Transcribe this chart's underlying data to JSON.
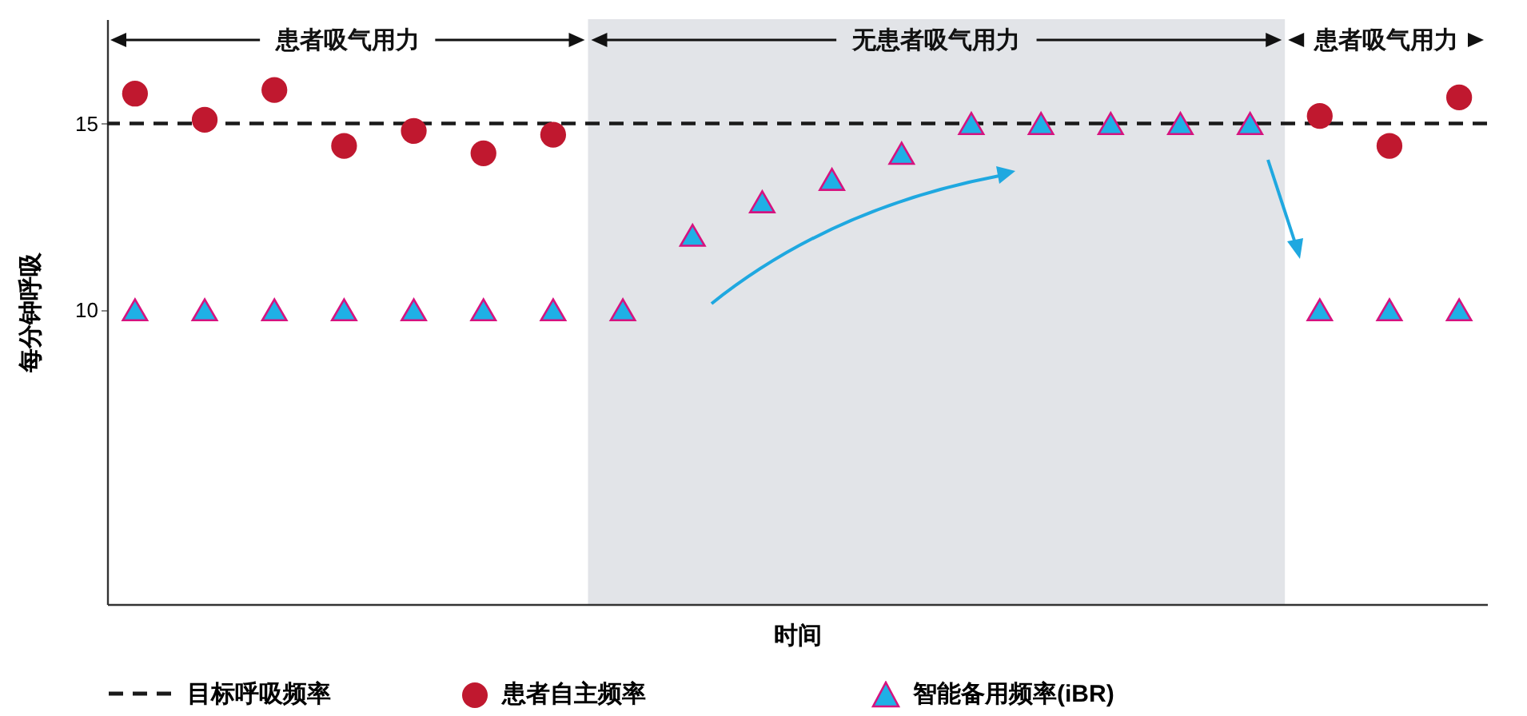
{
  "chart_data": {
    "type": "scatter",
    "xlabel": "时间",
    "ylabel": "每分钟呼吸",
    "categories": [
      null,
      null,
      null,
      null,
      null,
      null,
      null,
      null,
      null,
      null,
      null,
      null,
      null,
      null,
      null,
      null,
      null,
      null,
      null,
      null
    ],
    "series": [
      {
        "name": "患者自主频率",
        "color": "#c0182f",
        "marker": "circle",
        "values": [
          15.8,
          15.1,
          15.9,
          14.4,
          14.8,
          14.2,
          14.7,
          null,
          null,
          null,
          null,
          null,
          null,
          null,
          null,
          null,
          null,
          15.2,
          14.4,
          15.7
        ]
      },
      {
        "name": "智能备用频率(iBR)",
        "color": "#1fb0e6",
        "marker": "triangle",
        "values": [
          10,
          10,
          10,
          10,
          10,
          10,
          10,
          10,
          12,
          12.9,
          13.5,
          14.2,
          15,
          15,
          15,
          15,
          15,
          10,
          10,
          10
        ]
      }
    ],
    "ylim": [
      2.1,
      17.8
    ],
    "yticks": [
      10,
      15
    ],
    "ref_lines": [
      {
        "axis": "y",
        "value": 15,
        "label": "目标呼吸频率",
        "color": "#1a1a1a",
        "line_style": "dashed"
      }
    ],
    "annotations": [
      "患者吸气用力",
      "无患者吸气用力",
      "患者吸气用力"
    ],
    "tick_labels": "y",
    "grid": false,
    "legend": "bottom"
  }
}
